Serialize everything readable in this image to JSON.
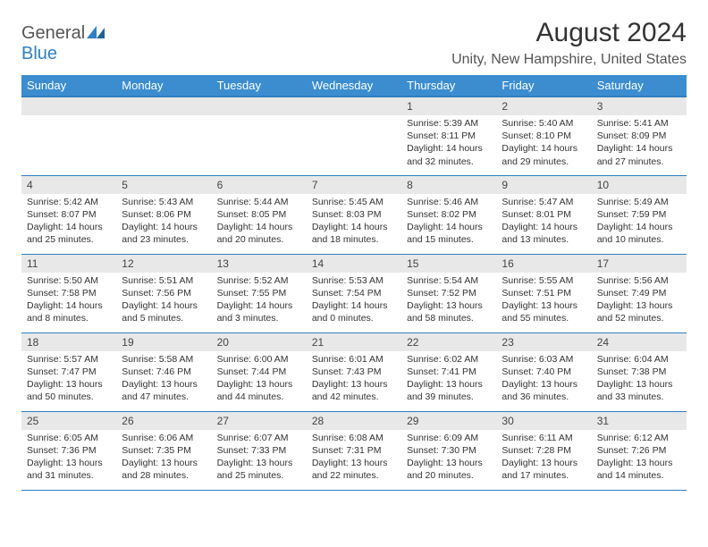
{
  "brand": {
    "part1": "General",
    "part2": "Blue"
  },
  "title": "August 2024",
  "location": "Unity, New Hampshire, United States",
  "dayHeaders": [
    "Sunday",
    "Monday",
    "Tuesday",
    "Wednesday",
    "Thursday",
    "Friday",
    "Saturday"
  ],
  "colors": {
    "header_bg": "#3b8dd0",
    "header_border": "#2f7fc2",
    "row_border": "#2f7fc2",
    "band_bg": "#e8e8e8",
    "brand_blue": "#2f7fc2",
    "background": "#ffffff"
  },
  "typography": {
    "title_fontsize": 30,
    "location_fontsize": 16,
    "header_fontsize": 13,
    "daynum_fontsize": 12,
    "body_fontsize": 10.5
  },
  "layout": {
    "columns": 7,
    "rows": 5,
    "leading_blanks": 4
  },
  "days": [
    {
      "n": "1",
      "sunrise": "5:39 AM",
      "sunset": "8:11 PM",
      "daylight": "14 hours and 32 minutes."
    },
    {
      "n": "2",
      "sunrise": "5:40 AM",
      "sunset": "8:10 PM",
      "daylight": "14 hours and 29 minutes."
    },
    {
      "n": "3",
      "sunrise": "5:41 AM",
      "sunset": "8:09 PM",
      "daylight": "14 hours and 27 minutes."
    },
    {
      "n": "4",
      "sunrise": "5:42 AM",
      "sunset": "8:07 PM",
      "daylight": "14 hours and 25 minutes."
    },
    {
      "n": "5",
      "sunrise": "5:43 AM",
      "sunset": "8:06 PM",
      "daylight": "14 hours and 23 minutes."
    },
    {
      "n": "6",
      "sunrise": "5:44 AM",
      "sunset": "8:05 PM",
      "daylight": "14 hours and 20 minutes."
    },
    {
      "n": "7",
      "sunrise": "5:45 AM",
      "sunset": "8:03 PM",
      "daylight": "14 hours and 18 minutes."
    },
    {
      "n": "8",
      "sunrise": "5:46 AM",
      "sunset": "8:02 PM",
      "daylight": "14 hours and 15 minutes."
    },
    {
      "n": "9",
      "sunrise": "5:47 AM",
      "sunset": "8:01 PM",
      "daylight": "14 hours and 13 minutes."
    },
    {
      "n": "10",
      "sunrise": "5:49 AM",
      "sunset": "7:59 PM",
      "daylight": "14 hours and 10 minutes."
    },
    {
      "n": "11",
      "sunrise": "5:50 AM",
      "sunset": "7:58 PM",
      "daylight": "14 hours and 8 minutes."
    },
    {
      "n": "12",
      "sunrise": "5:51 AM",
      "sunset": "7:56 PM",
      "daylight": "14 hours and 5 minutes."
    },
    {
      "n": "13",
      "sunrise": "5:52 AM",
      "sunset": "7:55 PM",
      "daylight": "14 hours and 3 minutes."
    },
    {
      "n": "14",
      "sunrise": "5:53 AM",
      "sunset": "7:54 PM",
      "daylight": "14 hours and 0 minutes."
    },
    {
      "n": "15",
      "sunrise": "5:54 AM",
      "sunset": "7:52 PM",
      "daylight": "13 hours and 58 minutes."
    },
    {
      "n": "16",
      "sunrise": "5:55 AM",
      "sunset": "7:51 PM",
      "daylight": "13 hours and 55 minutes."
    },
    {
      "n": "17",
      "sunrise": "5:56 AM",
      "sunset": "7:49 PM",
      "daylight": "13 hours and 52 minutes."
    },
    {
      "n": "18",
      "sunrise": "5:57 AM",
      "sunset": "7:47 PM",
      "daylight": "13 hours and 50 minutes."
    },
    {
      "n": "19",
      "sunrise": "5:58 AM",
      "sunset": "7:46 PM",
      "daylight": "13 hours and 47 minutes."
    },
    {
      "n": "20",
      "sunrise": "6:00 AM",
      "sunset": "7:44 PM",
      "daylight": "13 hours and 44 minutes."
    },
    {
      "n": "21",
      "sunrise": "6:01 AM",
      "sunset": "7:43 PM",
      "daylight": "13 hours and 42 minutes."
    },
    {
      "n": "22",
      "sunrise": "6:02 AM",
      "sunset": "7:41 PM",
      "daylight": "13 hours and 39 minutes."
    },
    {
      "n": "23",
      "sunrise": "6:03 AM",
      "sunset": "7:40 PM",
      "daylight": "13 hours and 36 minutes."
    },
    {
      "n": "24",
      "sunrise": "6:04 AM",
      "sunset": "7:38 PM",
      "daylight": "13 hours and 33 minutes."
    },
    {
      "n": "25",
      "sunrise": "6:05 AM",
      "sunset": "7:36 PM",
      "daylight": "13 hours and 31 minutes."
    },
    {
      "n": "26",
      "sunrise": "6:06 AM",
      "sunset": "7:35 PM",
      "daylight": "13 hours and 28 minutes."
    },
    {
      "n": "27",
      "sunrise": "6:07 AM",
      "sunset": "7:33 PM",
      "daylight": "13 hours and 25 minutes."
    },
    {
      "n": "28",
      "sunrise": "6:08 AM",
      "sunset": "7:31 PM",
      "daylight": "13 hours and 22 minutes."
    },
    {
      "n": "29",
      "sunrise": "6:09 AM",
      "sunset": "7:30 PM",
      "daylight": "13 hours and 20 minutes."
    },
    {
      "n": "30",
      "sunrise": "6:11 AM",
      "sunset": "7:28 PM",
      "daylight": "13 hours and 17 minutes."
    },
    {
      "n": "31",
      "sunrise": "6:12 AM",
      "sunset": "7:26 PM",
      "daylight": "13 hours and 14 minutes."
    }
  ],
  "labels": {
    "sunrise": "Sunrise: ",
    "sunset": "Sunset: ",
    "daylight": "Daylight: "
  }
}
